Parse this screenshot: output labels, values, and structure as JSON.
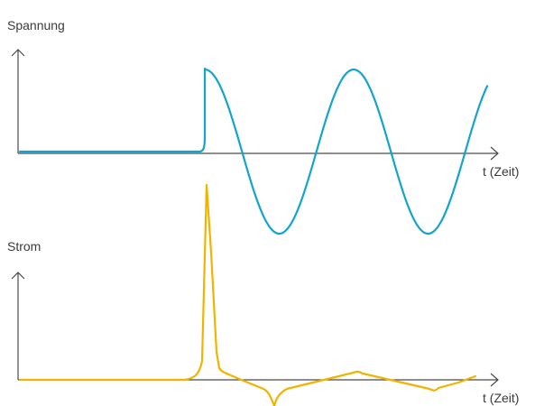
{
  "voltage_plot": {
    "ylabel": "Spannung",
    "xlabel": "t (Zeit)",
    "color": "#12a4cf"
  },
  "current_plot": {
    "ylabel": "Strom",
    "xlabel": "t (Zeit)",
    "color": "#f2b300"
  }
}
